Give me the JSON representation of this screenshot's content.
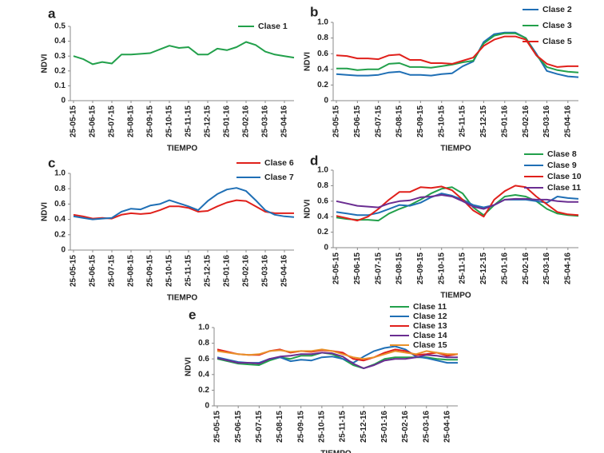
{
  "chart_data": [
    {
      "type": "line",
      "label": "a",
      "x_label": "TIEMPO",
      "y_label": "NDVI",
      "categories": [
        "25-05-15",
        null,
        "25-06-15",
        null,
        "25-07-15",
        null,
        "25-08-15",
        null,
        "25-09-15",
        null,
        "25-10-15",
        null,
        "25-11-15",
        null,
        "25-12-15",
        null,
        "25-01-16",
        null,
        "25-02-16",
        null,
        "25-03-16",
        null,
        "25-04-16",
        null
      ],
      "ylim": [
        0,
        0.5
      ],
      "yticks": [
        0,
        0.1,
        0.2,
        0.3,
        0.4,
        0.5
      ],
      "series": [
        {
          "name": "Clase 1",
          "color": "#22a04b",
          "values": [
            0.3,
            0.28,
            0.245,
            0.26,
            0.25,
            0.31,
            0.31,
            0.315,
            0.32,
            0.345,
            0.37,
            0.355,
            0.36,
            0.31,
            0.31,
            0.35,
            0.34,
            0.36,
            0.395,
            0.375,
            0.33,
            0.31,
            0.3,
            0.29
          ]
        }
      ]
    },
    {
      "type": "line",
      "label": "b",
      "x_label": "TIEMPO",
      "y_label": "NDVI",
      "categories": [
        "25-05-15",
        null,
        "25-06-15",
        null,
        "25-07-15",
        null,
        "25-08-15",
        null,
        "25-09-15",
        null,
        "25-10-15",
        null,
        "25-11-15",
        null,
        "25-12-15",
        null,
        "25-01-16",
        null,
        "25-02-16",
        null,
        "25-03-16",
        null,
        "25-04-16",
        null
      ],
      "ylim": [
        0,
        1
      ],
      "yticks": [
        0,
        0.2,
        0.4,
        0.6,
        0.8,
        {
          "value": 1,
          "label": "1.0"
        }
      ],
      "series": [
        {
          "name": "Clase 2",
          "color": "#1f6fb5",
          "values": [
            0.34,
            0.33,
            0.32,
            0.32,
            0.33,
            0.36,
            0.37,
            0.33,
            0.33,
            0.32,
            0.34,
            0.35,
            0.44,
            0.5,
            0.75,
            0.85,
            0.87,
            0.87,
            0.8,
            0.6,
            0.38,
            0.34,
            0.31,
            0.3
          ]
        },
        {
          "name": "Clase 3",
          "color": "#22a04b",
          "values": [
            0.41,
            0.41,
            0.39,
            0.4,
            0.4,
            0.47,
            0.48,
            0.43,
            0.43,
            0.42,
            0.44,
            0.46,
            0.49,
            0.51,
            0.73,
            0.83,
            0.86,
            0.86,
            0.8,
            0.58,
            0.43,
            0.39,
            0.37,
            0.36
          ]
        },
        {
          "name": "Clase 5",
          "color": "#e0201b",
          "values": [
            0.58,
            0.57,
            0.54,
            0.54,
            0.53,
            0.58,
            0.59,
            0.52,
            0.52,
            0.48,
            0.48,
            0.47,
            0.51,
            0.55,
            0.7,
            0.78,
            0.82,
            0.82,
            0.78,
            0.58,
            0.47,
            0.43,
            0.44,
            0.44
          ]
        }
      ]
    },
    {
      "type": "line",
      "label": "c",
      "x_label": "TIEMPO",
      "y_label": "NDVI",
      "categories": [
        "25-05-15",
        null,
        "25-06-15",
        null,
        "25-07-15",
        null,
        "25-08-15",
        null,
        "25-09-15",
        null,
        "25-10-15",
        null,
        "25-11-15",
        null,
        "25-12-15",
        null,
        "25-01-16",
        null,
        "25-02-16",
        null,
        "25-03-16",
        null,
        "25-04-16",
        null
      ],
      "ylim": [
        0,
        1
      ],
      "yticks": [
        0,
        0.2,
        0.4,
        0.6,
        0.8,
        {
          "value": 1,
          "label": "1.0"
        }
      ],
      "series": [
        {
          "name": "Clase 6",
          "color": "#e0201b",
          "values": [
            0.46,
            0.44,
            0.41,
            0.42,
            0.41,
            0.46,
            0.48,
            0.47,
            0.48,
            0.52,
            0.57,
            0.57,
            0.55,
            0.5,
            0.51,
            0.57,
            0.62,
            0.65,
            0.64,
            0.57,
            0.5,
            0.48,
            0.48,
            0.48
          ]
        },
        {
          "name": "Clase 7",
          "color": "#1f6fb5",
          "values": [
            0.44,
            0.42,
            0.4,
            0.41,
            0.42,
            0.5,
            0.54,
            0.53,
            0.58,
            0.6,
            0.65,
            0.61,
            0.57,
            0.52,
            0.64,
            0.73,
            0.79,
            0.81,
            0.77,
            0.65,
            0.52,
            0.46,
            0.44,
            0.43
          ]
        }
      ]
    },
    {
      "type": "line",
      "label": "d",
      "x_label": "TIEMPO",
      "y_label": "NDVI",
      "categories": [
        "25-05-15",
        null,
        "25-06-15",
        null,
        "25-07-15",
        null,
        "25-08-15",
        null,
        "25-09-15",
        null,
        "25-10-15",
        null,
        "25-11-15",
        null,
        "25-12-15",
        null,
        "25-01-16",
        null,
        "25-02-16",
        null,
        "25-03-16",
        null,
        "25-04-16",
        null
      ],
      "ylim": [
        0,
        1
      ],
      "yticks": [
        0,
        0.2,
        0.4,
        0.6,
        0.8,
        {
          "value": 1,
          "label": "1.0"
        }
      ],
      "series": [
        {
          "name": "Clase 8",
          "color": "#22a04b",
          "values": [
            0.39,
            0.37,
            0.36,
            0.36,
            0.35,
            0.44,
            0.5,
            0.55,
            0.62,
            0.7,
            0.76,
            0.78,
            0.7,
            0.52,
            0.42,
            0.55,
            0.66,
            0.68,
            0.66,
            0.6,
            0.5,
            0.44,
            0.42,
            0.41
          ]
        },
        {
          "name": "Clase 9",
          "color": "#1f6fb5",
          "values": [
            0.46,
            0.44,
            0.42,
            0.42,
            0.45,
            0.5,
            0.55,
            0.54,
            0.58,
            0.65,
            0.7,
            0.67,
            0.62,
            0.55,
            0.52,
            0.55,
            0.62,
            0.62,
            0.62,
            0.6,
            0.58,
            0.66,
            0.64,
            0.63
          ]
        },
        {
          "name": "Clase 10",
          "color": "#e0201b",
          "values": [
            0.41,
            0.38,
            0.35,
            0.4,
            0.5,
            0.62,
            0.72,
            0.72,
            0.78,
            0.77,
            0.79,
            0.74,
            0.62,
            0.48,
            0.4,
            0.62,
            0.73,
            0.8,
            0.78,
            0.66,
            0.56,
            0.46,
            0.43,
            0.42
          ]
        },
        {
          "name": "Clase 11",
          "color": "#6a2d91",
          "values": [
            0.6,
            0.57,
            0.54,
            0.53,
            0.52,
            0.57,
            0.6,
            0.61,
            0.65,
            0.66,
            0.68,
            0.66,
            0.6,
            0.53,
            0.5,
            0.55,
            0.62,
            0.63,
            0.63,
            0.62,
            0.62,
            0.6,
            0.59,
            0.59
          ]
        }
      ]
    },
    {
      "type": "line",
      "label": "e",
      "x_label": "TIEMPO",
      "y_label": "NDVI",
      "categories": [
        "25-05-15",
        null,
        "25-06-15",
        null,
        "25-07-15",
        null,
        "25-08-15",
        null,
        "25-09-15",
        null,
        "25-10-15",
        null,
        "25-11-15",
        null,
        "25-12-15",
        null,
        "25-01-16",
        null,
        "25-02-16",
        null,
        "25-03-16",
        null,
        "25-04-16",
        null
      ],
      "ylim": [
        0,
        1
      ],
      "yticks": [
        0,
        0.2,
        0.4,
        0.6,
        0.8,
        {
          "value": 1,
          "label": "1.0"
        }
      ],
      "series": [
        {
          "name": "Clase 11",
          "color": "#22a04b",
          "values": [
            0.6,
            0.57,
            0.54,
            0.53,
            0.52,
            0.58,
            0.62,
            0.6,
            0.64,
            0.64,
            0.68,
            0.66,
            0.6,
            0.52,
            0.48,
            0.53,
            0.6,
            0.62,
            0.62,
            0.62,
            0.62,
            0.6,
            0.59,
            0.59
          ]
        },
        {
          "name": "Clase 12",
          "color": "#1f6fb5",
          "values": [
            0.62,
            0.59,
            0.56,
            0.55,
            0.55,
            0.6,
            0.62,
            0.57,
            0.59,
            0.58,
            0.62,
            0.63,
            0.6,
            0.55,
            0.63,
            0.7,
            0.74,
            0.76,
            0.72,
            0.63,
            0.61,
            0.58,
            0.55,
            0.55
          ]
        },
        {
          "name": "Clase 13",
          "color": "#e0201b",
          "values": [
            0.72,
            0.69,
            0.66,
            0.65,
            0.65,
            0.7,
            0.72,
            0.68,
            0.7,
            0.69,
            0.71,
            0.7,
            0.68,
            0.6,
            0.58,
            0.62,
            0.68,
            0.72,
            0.7,
            0.65,
            0.66,
            0.68,
            0.64,
            0.66
          ]
        },
        {
          "name": "Clase 14",
          "color": "#6a2d91",
          "values": [
            0.61,
            0.58,
            0.55,
            0.55,
            0.54,
            0.6,
            0.63,
            0.64,
            0.66,
            0.66,
            0.68,
            0.67,
            0.63,
            0.54,
            0.48,
            0.52,
            0.58,
            0.6,
            0.6,
            0.62,
            0.65,
            0.64,
            0.62,
            0.62
          ]
        },
        {
          "name": "Clase 15",
          "color": "#e8912a",
          "values": [
            0.7,
            0.68,
            0.66,
            0.65,
            0.66,
            0.7,
            0.71,
            0.69,
            0.7,
            0.7,
            0.72,
            0.7,
            0.66,
            0.62,
            0.6,
            0.62,
            0.66,
            0.7,
            0.68,
            0.66,
            0.7,
            0.68,
            0.66,
            0.66
          ]
        }
      ]
    }
  ]
}
